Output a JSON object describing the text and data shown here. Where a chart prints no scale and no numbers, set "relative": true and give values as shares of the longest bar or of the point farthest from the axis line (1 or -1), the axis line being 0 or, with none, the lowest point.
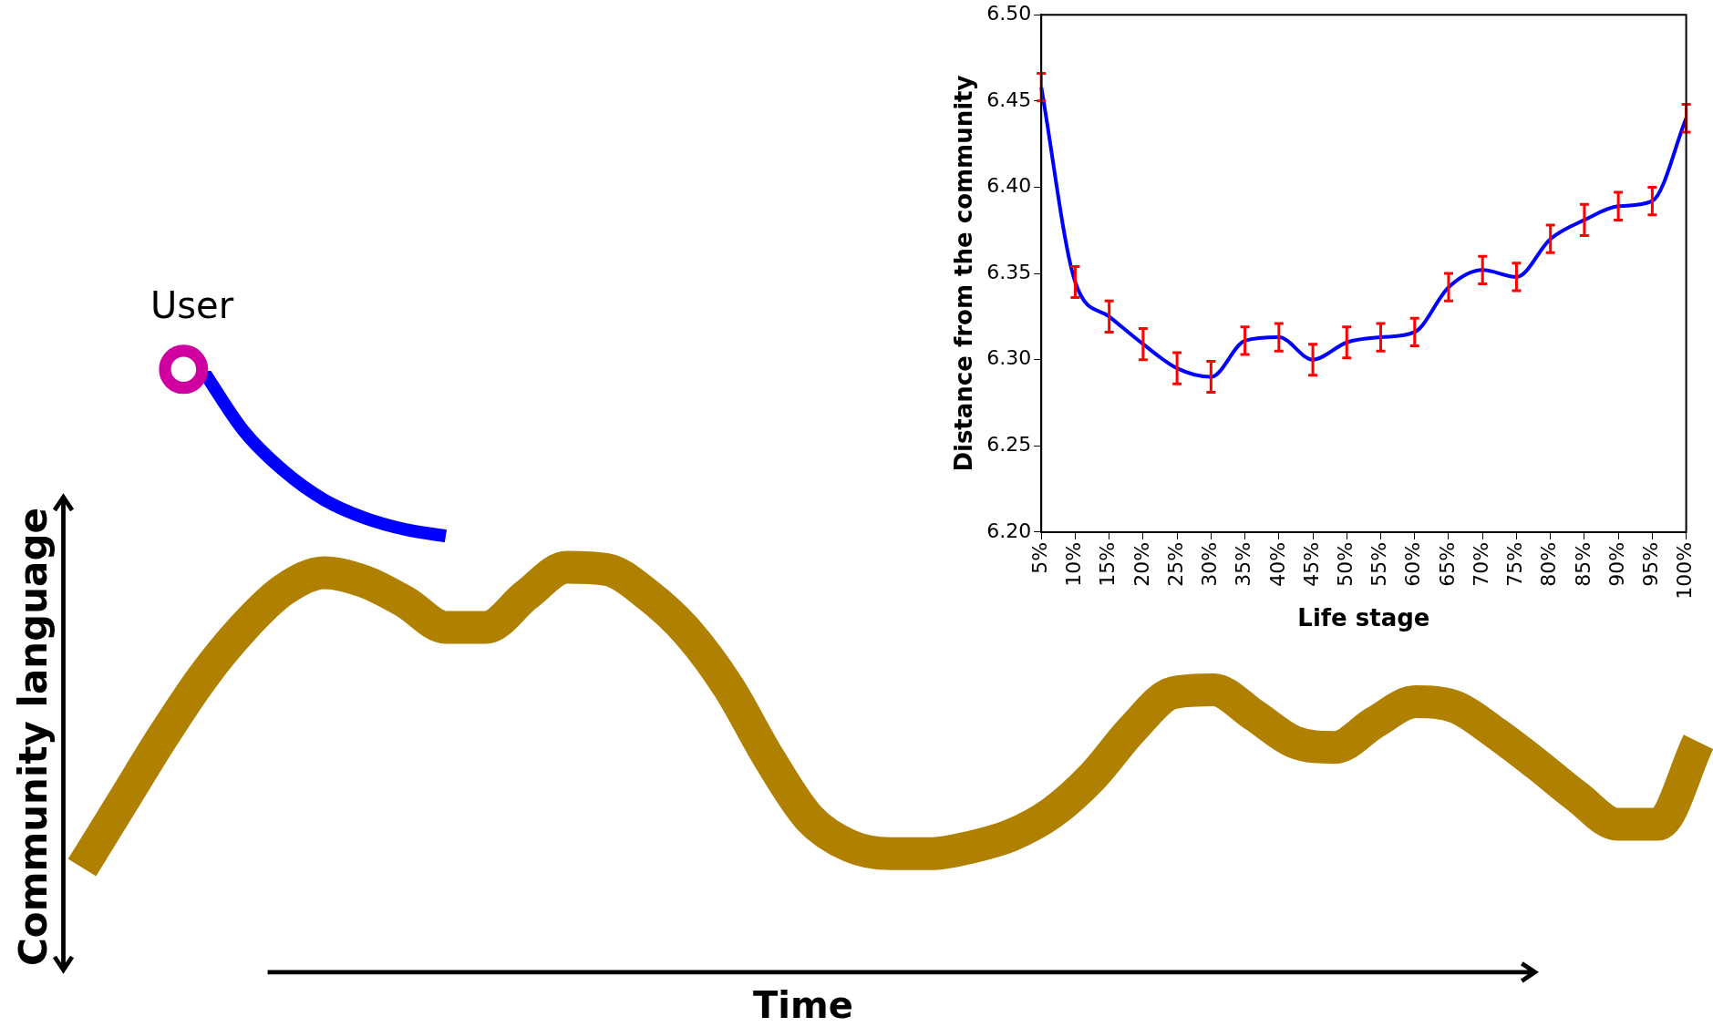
{
  "chart_data": [
    {
      "type": "line",
      "relative": true,
      "xlabel": "Time",
      "ylabel": "Community language",
      "grid": false,
      "marker": "none",
      "line_style": "solid",
      "categories": [
        null,
        null,
        null,
        null,
        null,
        null,
        null,
        null,
        null,
        null,
        null,
        null,
        null,
        null,
        null,
        null,
        null,
        null,
        null,
        null,
        null,
        null,
        null,
        null,
        null,
        null,
        null,
        null,
        null,
        null,
        null,
        null,
        null,
        null,
        null,
        null,
        null,
        null,
        null,
        null,
        null
      ],
      "series": [
        {
          "color": "#b08000",
          "values": [
            0.173,
            0.282,
            0.391,
            0.491,
            0.573,
            0.636,
            0.664,
            0.649,
            0.615,
            0.573,
            0.573,
            0.627,
            0.673,
            0.669,
            0.627,
            0.564,
            0.473,
            0.355,
            0.255,
            0.209,
            0.196,
            0.196,
            0.207,
            0.227,
            0.264,
            0.324,
            0.404,
            0.464,
            0.469,
            0.427,
            0.382,
            0.373,
            0.415,
            0.449,
            0.44,
            0.396,
            0.345,
            0.291,
            0.245,
            0.245,
            0.382
          ]
        },
        {
          "name": "User",
          "color": "#0000ff",
          "values": [
            null,
            null,
            null,
            1.0,
            0.9,
            0.833,
            0.785,
            0.755,
            0.736,
            0.725,
            null,
            null,
            null,
            null,
            null,
            null,
            null,
            null,
            null,
            null,
            null,
            null,
            null,
            null,
            null,
            null,
            null,
            null,
            null,
            null,
            null,
            null,
            null,
            null,
            null,
            null,
            null,
            null,
            null,
            null,
            null
          ]
        }
      ]
    },
    {
      "type": "line",
      "xlabel": "Life stage",
      "ylabel": "Distance from the community",
      "categories": [
        "5%",
        "10%",
        "15%",
        "20%",
        "25%",
        "30%",
        "35%",
        "40%",
        "45%",
        "50%",
        "55%",
        "60%",
        "65%",
        "70%",
        "75%",
        "80%",
        "85%",
        "90%",
        "95%",
        "100%"
      ],
      "series": [
        {
          "color": "#0000ff",
          "values": [
            6.458,
            6.345,
            6.325,
            6.309,
            6.295,
            6.29,
            6.311,
            6.313,
            6.3,
            6.31,
            6.313,
            6.316,
            6.342,
            6.352,
            6.348,
            6.37,
            6.381,
            6.389,
            6.392,
            6.44
          ],
          "errors": [
            0.008,
            0.009,
            0.009,
            0.009,
            0.009,
            0.009,
            0.008,
            0.008,
            0.009,
            0.009,
            0.008,
            0.008,
            0.008,
            0.008,
            0.008,
            0.008,
            0.009,
            0.008,
            0.008,
            0.008
          ]
        }
      ],
      "ylim": [
        6.2,
        6.5
      ],
      "yticks": [
        {
          "value": 6.2,
          "label": "6.20"
        },
        6.25,
        {
          "value": 6.3,
          "label": "6.30"
        },
        6.35,
        {
          "value": 6.4,
          "label": "6.40"
        },
        6.45,
        {
          "value": 6.5,
          "label": "6.50"
        }
      ],
      "grid": false,
      "marker": "none",
      "line_style": "solid"
    }
  ]
}
